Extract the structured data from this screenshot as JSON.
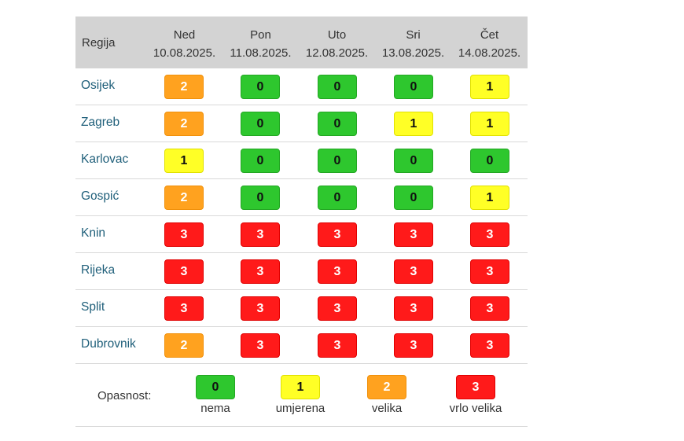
{
  "header": {
    "region_label": "Regija",
    "days": [
      {
        "day": "Ned",
        "date": "10.08.2025."
      },
      {
        "day": "Pon",
        "date": "11.08.2025."
      },
      {
        "day": "Uto",
        "date": "12.08.2025."
      },
      {
        "day": "Sri",
        "date": "13.08.2025."
      },
      {
        "day": "Čet",
        "date": "14.08.2025."
      }
    ]
  },
  "rows": [
    {
      "region": "Osijek",
      "levels": [
        "2",
        "0",
        "0",
        "0",
        "1"
      ]
    },
    {
      "region": "Zagreb",
      "levels": [
        "2",
        "0",
        "0",
        "1",
        "1"
      ]
    },
    {
      "region": "Karlovac",
      "levels": [
        "1",
        "0",
        "0",
        "0",
        "0"
      ]
    },
    {
      "region": "Gospić",
      "levels": [
        "2",
        "0",
        "0",
        "0",
        "1"
      ]
    },
    {
      "region": "Knin",
      "levels": [
        "3",
        "3",
        "3",
        "3",
        "3"
      ]
    },
    {
      "region": "Rijeka",
      "levels": [
        "3",
        "3",
        "3",
        "3",
        "3"
      ]
    },
    {
      "region": "Split",
      "levels": [
        "3",
        "3",
        "3",
        "3",
        "3"
      ]
    },
    {
      "region": "Dubrovnik",
      "levels": [
        "2",
        "3",
        "3",
        "3",
        "3"
      ]
    }
  ],
  "legend": {
    "label": "Opasnost:",
    "items": [
      {
        "value": "0",
        "text": "nema"
      },
      {
        "value": "1",
        "text": "umjerena"
      },
      {
        "value": "2",
        "text": "velika"
      },
      {
        "value": "3",
        "text": "vrlo velika"
      }
    ]
  },
  "colors": {
    "level_0": "#2ec72e",
    "level_1": "#ffff26",
    "level_2": "#ffa21f",
    "level_3": "#ff1a1a"
  }
}
